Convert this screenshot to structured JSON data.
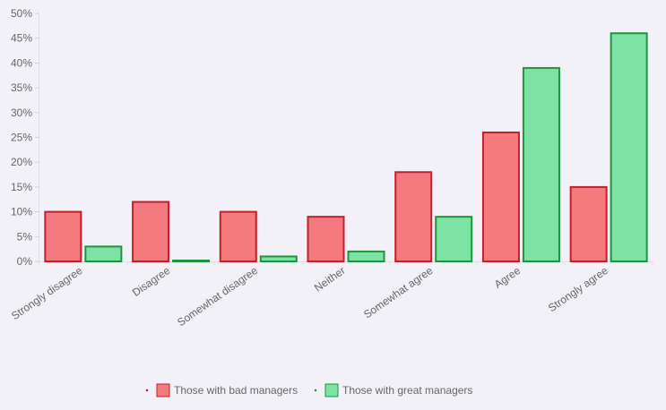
{
  "chart_data": {
    "type": "bar",
    "categories": [
      "Strongly disagree",
      "Disagree",
      "Somewhat disagree",
      "Neither",
      "Somewhat agree",
      "Agree",
      "Strongly agree"
    ],
    "series": [
      {
        "name": "Those with bad managers",
        "values": [
          10,
          12,
          10,
          9,
          18,
          26,
          15
        ],
        "fill": "#f47a7d",
        "stroke": "#c41f2c"
      },
      {
        "name": "Those with great managers",
        "values": [
          3,
          0,
          1,
          2,
          9,
          39,
          46
        ],
        "fill": "#7de3a5",
        "stroke": "#1e9440"
      }
    ],
    "y_ticks": [
      "0%",
      "5%",
      "10%",
      "15%",
      "20%",
      "25%",
      "30%",
      "35%",
      "40%",
      "45%",
      "50%"
    ],
    "ylim": [
      0,
      50
    ],
    "y_unit": "%",
    "grid": false,
    "legend_position": "bottom",
    "title": "",
    "xlabel": "",
    "ylabel": ""
  }
}
